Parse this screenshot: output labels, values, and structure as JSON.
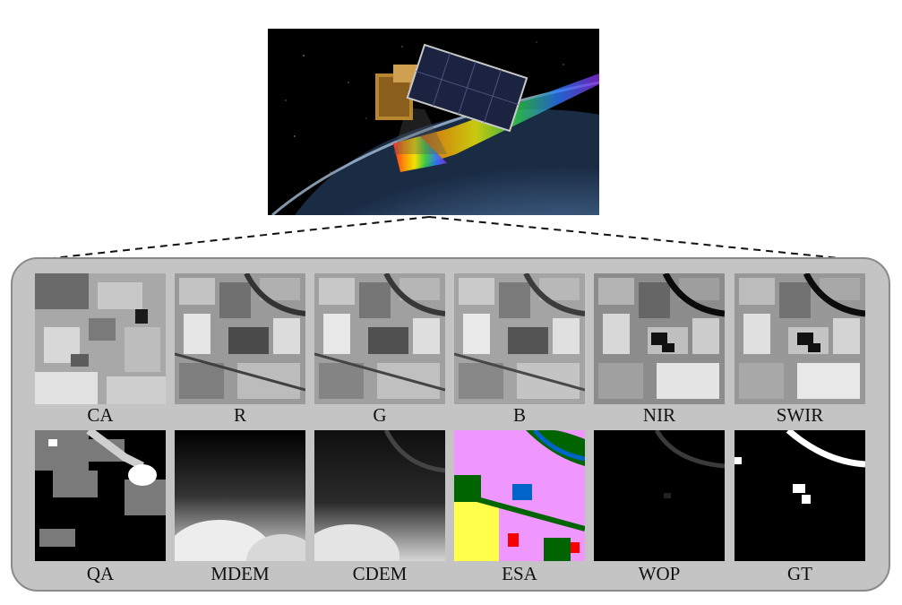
{
  "bands_row1": [
    {
      "id": "ca",
      "label": "CA"
    },
    {
      "id": "r",
      "label": "R"
    },
    {
      "id": "g",
      "label": "G"
    },
    {
      "id": "b",
      "label": "B"
    },
    {
      "id": "nir",
      "label": "NIR"
    },
    {
      "id": "swir",
      "label": "SWIR"
    }
  ],
  "bands_row2": [
    {
      "id": "qa",
      "label": "QA"
    },
    {
      "id": "mdem",
      "label": "MDEM"
    },
    {
      "id": "cdem",
      "label": "CDEM"
    },
    {
      "id": "esa",
      "label": "ESA"
    },
    {
      "id": "wop",
      "label": "WOP"
    },
    {
      "id": "gt",
      "label": "GT"
    }
  ],
  "colors": {
    "panel_bg": "#c4c4c4",
    "panel_border": "#8a8a8a",
    "esa_tree": "#006400",
    "esa_crop": "#f096ff",
    "esa_grass": "#ffff4c",
    "esa_water": "#0064c8",
    "esa_built": "#fa0000"
  }
}
